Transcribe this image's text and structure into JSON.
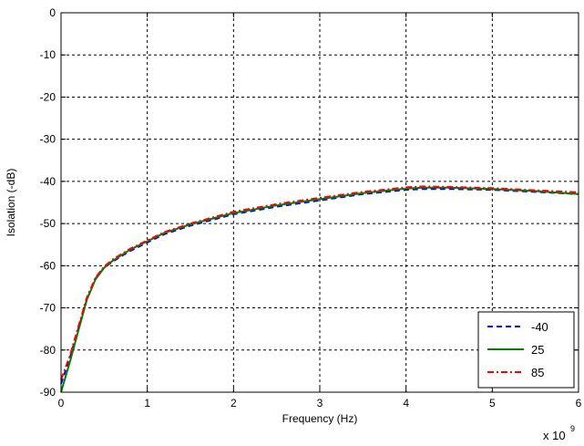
{
  "chart_data": {
    "type": "line",
    "title": "",
    "xlabel": "Frequency (Hz)",
    "ylabel": "Isolation (-dB)",
    "x_multiplier_base": "x 10",
    "x_multiplier_exp": "9",
    "xlim": [
      0,
      6
    ],
    "ylim": [
      -90,
      0
    ],
    "xticks": [
      0,
      1,
      2,
      3,
      4,
      5,
      6
    ],
    "yticks": [
      -90,
      -80,
      -70,
      -60,
      -50,
      -40,
      -30,
      -20,
      -10,
      0
    ],
    "grid": true,
    "legend_position": "bottom-right",
    "series": [
      {
        "name": "-40",
        "color": "#0000ff",
        "style": "dashed",
        "x": [
          0,
          0.1,
          0.2,
          0.3,
          0.4,
          0.5,
          0.6,
          0.8,
          1.0,
          1.2,
          1.5,
          2.0,
          2.5,
          3.0,
          3.5,
          4.0,
          4.2,
          4.5,
          5.0,
          5.5,
          6.0
        ],
        "y": [
          -88,
          -82,
          -75,
          -68,
          -63,
          -60.5,
          -59,
          -56.5,
          -54.5,
          -52.5,
          -50.5,
          -47.8,
          -46,
          -44.5,
          -43,
          -42,
          -41.8,
          -41.8,
          -42,
          -42.5,
          -43
        ]
      },
      {
        "name": "25",
        "color": "#008000",
        "style": "solid",
        "x": [
          0,
          0.1,
          0.2,
          0.3,
          0.4,
          0.5,
          0.6,
          0.8,
          1.0,
          1.2,
          1.5,
          2.0,
          2.5,
          3.0,
          3.5,
          4.0,
          4.2,
          4.5,
          5.0,
          5.5,
          6.0
        ],
        "y": [
          -90,
          -83,
          -75.5,
          -68,
          -63.2,
          -60.5,
          -58.8,
          -56.2,
          -54.2,
          -52.2,
          -50.2,
          -47.5,
          -45.7,
          -44.2,
          -42.8,
          -41.7,
          -41.5,
          -41.5,
          -41.8,
          -42.3,
          -43
        ]
      },
      {
        "name": "85",
        "color": "#ff0000",
        "style": "dashdot",
        "x": [
          0,
          0.1,
          0.2,
          0.3,
          0.4,
          0.5,
          0.6,
          0.8,
          1.0,
          1.2,
          1.5,
          2.0,
          2.5,
          3.0,
          3.5,
          4.0,
          4.2,
          4.5,
          5.0,
          5.5,
          6.0
        ],
        "y": [
          -87,
          -81.5,
          -74.5,
          -67.5,
          -62.8,
          -60.2,
          -58.5,
          -56,
          -54,
          -52,
          -50,
          -47.2,
          -45.4,
          -43.9,
          -42.5,
          -41.4,
          -41.2,
          -41.3,
          -41.6,
          -42.1,
          -42.6
        ]
      }
    ]
  }
}
